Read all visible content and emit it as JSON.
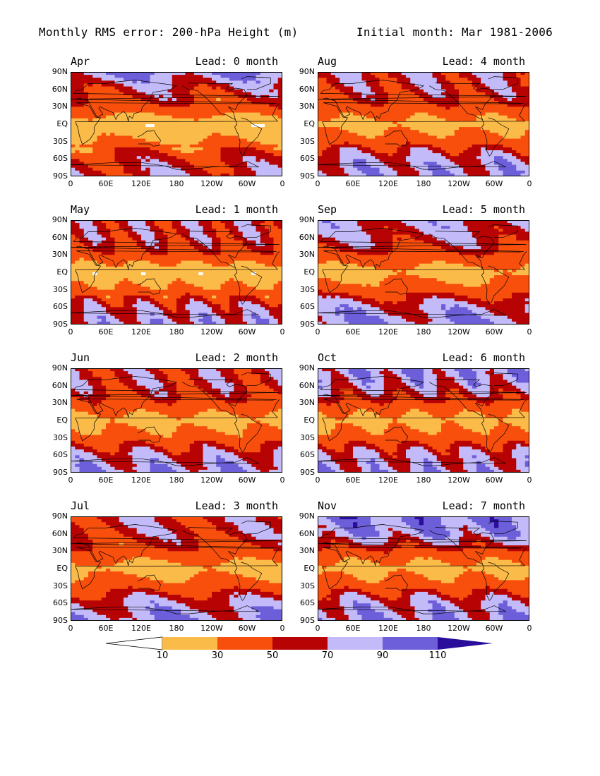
{
  "title": {
    "left": "Monthly RMS error: 200-hPa Height (m)",
    "right": "Initial month: Mar 1981-2006"
  },
  "colors": {
    "lt10": "#ffffff",
    "c10_30": "#fbbb48",
    "c30_50": "#f84f0d",
    "c50_70": "#b70303",
    "c70_90": "#c3bbf9",
    "c90_110": "#6c5fd9",
    "gt110": "#2a0d9a",
    "coast": "#000000"
  },
  "axes": {
    "y_ticks": [
      "90N",
      "60N",
      "30N",
      "EQ",
      "30S",
      "60S",
      "90S"
    ],
    "x_ticks": [
      "0",
      "60E",
      "120E",
      "180",
      "120W",
      "60W",
      "0"
    ]
  },
  "colorbar": {
    "levels": [
      "10",
      "30",
      "50",
      "70",
      "90",
      "110"
    ],
    "extend": "both"
  },
  "chart_data": {
    "type": "heatmap",
    "title": "Monthly RMS error: 200-hPa Height (m)",
    "subtitle": "Initial month: Mar 1981-2006",
    "variable": "200-hPa Height RMS error",
    "units": "m",
    "contour_levels": [
      10,
      30,
      50,
      70,
      90,
      110
    ],
    "x_range": [
      "0",
      "0"
    ],
    "y_range": [
      "90S",
      "90N"
    ],
    "panels": [
      {
        "month": "Apr",
        "lead": "Lead: 0 month",
        "lead_months": 0,
        "zonal_profile": [
          {
            "lat": "90N",
            "rms": 90
          },
          {
            "lat": "60N",
            "rms": 60
          },
          {
            "lat": "30N",
            "rms": 45
          },
          {
            "lat": "EQ",
            "rms": 15
          },
          {
            "lat": "30S",
            "rms": 30
          },
          {
            "lat": "60S",
            "rms": 55
          },
          {
            "lat": "90S",
            "rms": 65
          }
        ]
      },
      {
        "month": "Aug",
        "lead": "Lead: 4 month",
        "lead_months": 4,
        "zonal_profile": [
          {
            "lat": "90N",
            "rms": 65
          },
          {
            "lat": "60N",
            "rms": 60
          },
          {
            "lat": "30N",
            "rms": 45
          },
          {
            "lat": "EQ",
            "rms": 22
          },
          {
            "lat": "30S",
            "rms": 40
          },
          {
            "lat": "60S",
            "rms": 75
          },
          {
            "lat": "90S",
            "rms": 80
          }
        ]
      },
      {
        "month": "May",
        "lead": "Lead: 1 month",
        "lead_months": 1,
        "zonal_profile": [
          {
            "lat": "90N",
            "rms": 62
          },
          {
            "lat": "60N",
            "rms": 60
          },
          {
            "lat": "30N",
            "rms": 45
          },
          {
            "lat": "EQ",
            "rms": 15
          },
          {
            "lat": "30S",
            "rms": 35
          },
          {
            "lat": "60S",
            "rms": 65
          },
          {
            "lat": "90S",
            "rms": 80
          }
        ]
      },
      {
        "month": "Sep",
        "lead": "Lead: 5 month",
        "lead_months": 5,
        "zonal_profile": [
          {
            "lat": "90N",
            "rms": 75
          },
          {
            "lat": "60N",
            "rms": 65
          },
          {
            "lat": "30N",
            "rms": 45
          },
          {
            "lat": "EQ",
            "rms": 22
          },
          {
            "lat": "30S",
            "rms": 40
          },
          {
            "lat": "60S",
            "rms": 75
          },
          {
            "lat": "90S",
            "rms": 85
          }
        ]
      },
      {
        "month": "Jun",
        "lead": "Lead: 2 month",
        "lead_months": 2,
        "zonal_profile": [
          {
            "lat": "90N",
            "rms": 60
          },
          {
            "lat": "60N",
            "rms": 60
          },
          {
            "lat": "30N",
            "rms": 45
          },
          {
            "lat": "EQ",
            "rms": 22
          },
          {
            "lat": "30S",
            "rms": 38
          },
          {
            "lat": "60S",
            "rms": 70
          },
          {
            "lat": "90S",
            "rms": 85
          }
        ]
      },
      {
        "month": "Oct",
        "lead": "Lead: 6 month",
        "lead_months": 6,
        "zonal_profile": [
          {
            "lat": "90N",
            "rms": 85
          },
          {
            "lat": "60N",
            "rms": 75
          },
          {
            "lat": "30N",
            "rms": 45
          },
          {
            "lat": "EQ",
            "rms": 22
          },
          {
            "lat": "30S",
            "rms": 40
          },
          {
            "lat": "60S",
            "rms": 70
          },
          {
            "lat": "90S",
            "rms": 80
          }
        ]
      },
      {
        "month": "Jul",
        "lead": "Lead: 3 month",
        "lead_months": 3,
        "zonal_profile": [
          {
            "lat": "90N",
            "rms": 60
          },
          {
            "lat": "60N",
            "rms": 60
          },
          {
            "lat": "30N",
            "rms": 45
          },
          {
            "lat": "EQ",
            "rms": 22
          },
          {
            "lat": "30S",
            "rms": 40
          },
          {
            "lat": "60S",
            "rms": 72
          },
          {
            "lat": "90S",
            "rms": 85
          }
        ]
      },
      {
        "month": "Nov",
        "lead": "Lead: 7 month",
        "lead_months": 7,
        "zonal_profile": [
          {
            "lat": "90N",
            "rms": 95
          },
          {
            "lat": "60N",
            "rms": 85
          },
          {
            "lat": "30N",
            "rms": 45
          },
          {
            "lat": "EQ",
            "rms": 22
          },
          {
            "lat": "30S",
            "rms": 40
          },
          {
            "lat": "60S",
            "rms": 75
          },
          {
            "lat": "90S",
            "rms": 85
          }
        ]
      }
    ]
  }
}
